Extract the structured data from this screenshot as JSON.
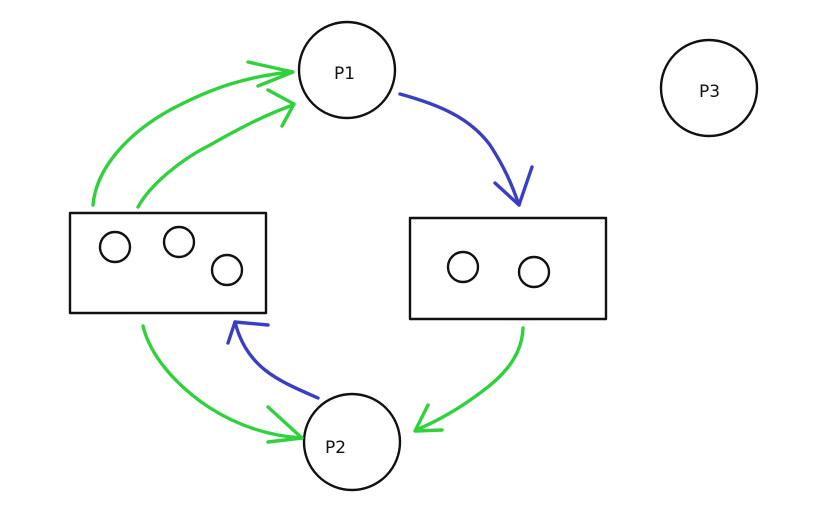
{
  "colors": {
    "background": "#ffffff",
    "outline": "#111111",
    "request_edge": "#2fd23c",
    "assignment_edge": "#3a3ec4"
  },
  "processes": [
    {
      "id": "p1",
      "label": "P1"
    },
    {
      "id": "p2",
      "label": "P2"
    },
    {
      "id": "p3",
      "label": "P3"
    }
  ],
  "resources": [
    {
      "id": "r1",
      "instances": 3
    },
    {
      "id": "r2",
      "instances": 2
    }
  ],
  "edges": [
    {
      "id": "e1",
      "from": "r1",
      "to": "p1",
      "kind": "request_edge"
    },
    {
      "id": "e2",
      "from": "r1",
      "to": "p1",
      "kind": "request_edge"
    },
    {
      "id": "e3",
      "from": "p1",
      "to": "r2",
      "kind": "assignment_edge"
    },
    {
      "id": "e4",
      "from": "r2",
      "to": "p2",
      "kind": "request_edge"
    },
    {
      "id": "e5",
      "from": "r1",
      "to": "p2",
      "kind": "request_edge"
    },
    {
      "id": "e6",
      "from": "p2",
      "to": "r1",
      "kind": "assignment_edge"
    }
  ]
}
